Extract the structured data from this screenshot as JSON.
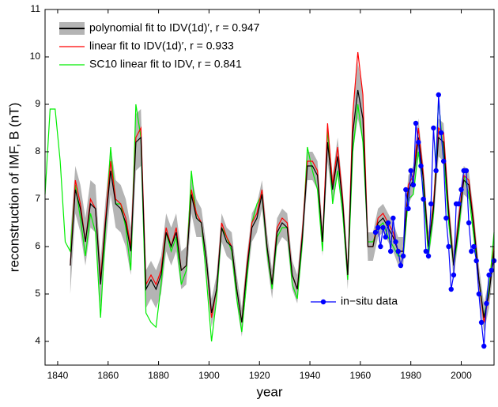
{
  "chart_data": {
    "type": "line",
    "xlabel": "year",
    "ylabel": "reconstruction of IMF, B  (nT)",
    "xlim": [
      1835,
      2013
    ],
    "ylim": [
      3.5,
      11
    ],
    "xticks": [
      1840,
      1860,
      1880,
      1900,
      1920,
      1940,
      1960,
      1980,
      2000
    ],
    "yticks": [
      4,
      5,
      6,
      7,
      8,
      9,
      10,
      11
    ],
    "band_color": "#b4b4b4",
    "series": [
      {
        "name": "polynomial fit to IDV(1d)′, r = 0.947",
        "color": "#000000",
        "x": [
          1845,
          1847,
          1849,
          1851,
          1853,
          1855,
          1857,
          1859,
          1861,
          1863,
          1865,
          1867,
          1869,
          1871,
          1873,
          1875,
          1877,
          1879,
          1881,
          1883,
          1885,
          1887,
          1889,
          1891,
          1893,
          1895,
          1897,
          1899,
          1901,
          1903,
          1905,
          1907,
          1909,
          1911,
          1913,
          1915,
          1917,
          1919,
          1921,
          1923,
          1925,
          1927,
          1929,
          1931,
          1933,
          1935,
          1937,
          1939,
          1941,
          1943,
          1945,
          1947,
          1949,
          1951,
          1953,
          1955,
          1957,
          1959,
          1961,
          1963,
          1965,
          1967,
          1969,
          1971,
          1973,
          1975,
          1977,
          1979,
          1981,
          1983,
          1985,
          1987,
          1989,
          1991,
          1993,
          1995,
          1997,
          1999,
          2001,
          2003,
          2005,
          2007,
          2009,
          2011,
          2013
        ],
        "values": [
          5.6,
          7.2,
          6.8,
          6.1,
          6.9,
          6.8,
          5.2,
          6.5,
          7.6,
          6.9,
          6.8,
          6.5,
          5.9,
          8.2,
          8.3,
          5.1,
          5.3,
          5.1,
          5.4,
          6.3,
          6.0,
          6.3,
          5.5,
          5.6,
          7.1,
          6.6,
          6.5,
          5.7,
          4.6,
          5.1,
          6.4,
          6.1,
          6.0,
          5.1,
          4.4,
          5.5,
          6.4,
          6.6,
          7.1,
          6.0,
          5.2,
          6.3,
          6.5,
          6.4,
          5.4,
          5.1,
          6.2,
          7.7,
          7.7,
          7.5,
          6.1,
          8.2,
          7.2,
          7.9,
          6.9,
          5.4,
          8.4,
          9.3,
          8.7,
          6.0,
          6.0,
          6.5,
          6.6,
          6.4,
          6.2,
          5.9,
          5.9,
          7.2,
          7.4,
          8.3,
          7.4,
          6.0,
          6.8,
          8.3,
          8.2,
          6.7,
          5.6,
          6.5,
          7.4,
          7.3,
          6.4,
          5.3,
          4.5,
          5.0,
          5.9
        ],
        "band": [
          0.6,
          0.5,
          0.5,
          0.5,
          0.5,
          0.5,
          0.5,
          0.5,
          0.5,
          0.5,
          0.5,
          0.5,
          0.5,
          0.6,
          0.6,
          0.4,
          0.4,
          0.4,
          0.4,
          0.4,
          0.4,
          0.4,
          0.4,
          0.4,
          0.4,
          0.4,
          0.3,
          0.3,
          0.3,
          0.3,
          0.3,
          0.3,
          0.3,
          0.3,
          0.3,
          0.3,
          0.3,
          0.3,
          0.3,
          0.3,
          0.3,
          0.3,
          0.3,
          0.3,
          0.3,
          0.3,
          0.3,
          0.3,
          0.3,
          0.3,
          0.3,
          0.4,
          0.3,
          0.4,
          0.3,
          0.3,
          0.4,
          0.6,
          0.5,
          0.3,
          0.3,
          0.3,
          0.3,
          0.3,
          0.3,
          0.3,
          0.3,
          0.3,
          0.3,
          0.4,
          0.3,
          0.3,
          0.3,
          0.4,
          0.4,
          0.3,
          0.3,
          0.3,
          0.3,
          0.3,
          0.3,
          0.3,
          0.3,
          0.3,
          0.3
        ]
      },
      {
        "name": "linear fit to IDV(1d)′, r = 0.933",
        "color": "#ff0000",
        "x": [
          1845,
          1847,
          1849,
          1851,
          1853,
          1855,
          1857,
          1859,
          1861,
          1863,
          1865,
          1867,
          1869,
          1871,
          1873,
          1875,
          1877,
          1879,
          1881,
          1883,
          1885,
          1887,
          1889,
          1891,
          1893,
          1895,
          1897,
          1899,
          1901,
          1903,
          1905,
          1907,
          1909,
          1911,
          1913,
          1915,
          1917,
          1919,
          1921,
          1923,
          1925,
          1927,
          1929,
          1931,
          1933,
          1935,
          1937,
          1939,
          1941,
          1943,
          1945,
          1947,
          1949,
          1951,
          1953,
          1955,
          1957,
          1959,
          1961,
          1963,
          1965,
          1967,
          1969,
          1971,
          1973,
          1975,
          1977,
          1979,
          1981,
          1983,
          1985,
          1987,
          1989,
          1991,
          1993,
          1995,
          1997,
          1999,
          2001,
          2003,
          2005,
          2007,
          2009,
          2011,
          2013
        ],
        "values": [
          5.6,
          7.4,
          6.9,
          6.1,
          7.0,
          6.8,
          5.3,
          6.6,
          7.8,
          7.0,
          6.9,
          6.6,
          6.0,
          8.3,
          8.5,
          5.2,
          5.4,
          5.2,
          5.5,
          6.4,
          6.0,
          6.4,
          5.5,
          5.6,
          7.2,
          6.7,
          6.5,
          5.7,
          4.5,
          5.1,
          6.5,
          6.2,
          6.0,
          5.1,
          4.4,
          5.6,
          6.5,
          6.7,
          7.2,
          6.0,
          5.2,
          6.4,
          6.6,
          6.5,
          5.4,
          5.1,
          6.3,
          7.8,
          7.8,
          7.6,
          6.1,
          8.6,
          7.3,
          8.1,
          7.0,
          5.4,
          8.8,
          10.1,
          9.2,
          6.0,
          6.0,
          6.6,
          6.7,
          6.5,
          6.3,
          5.9,
          5.9,
          7.3,
          7.5,
          8.5,
          7.5,
          6.0,
          6.9,
          8.5,
          8.4,
          6.8,
          5.6,
          6.6,
          7.5,
          7.4,
          6.5,
          5.3,
          4.4,
          5.0,
          6.0
        ]
      },
      {
        "name": "SC10 linear fit to IDV, r = 0.841",
        "color": "#00ee00",
        "x": [
          1835,
          1837,
          1839,
          1841,
          1843,
          1845,
          1847,
          1849,
          1851,
          1853,
          1855,
          1857,
          1859,
          1861,
          1863,
          1865,
          1867,
          1869,
          1871,
          1873,
          1875,
          1877,
          1879,
          1881,
          1883,
          1885,
          1887,
          1889,
          1891,
          1893,
          1895,
          1897,
          1899,
          1901,
          1903,
          1905,
          1907,
          1909,
          1911,
          1913,
          1915,
          1917,
          1919,
          1921,
          1923,
          1925,
          1927,
          1929,
          1931,
          1933,
          1935,
          1937,
          1939,
          1941,
          1943,
          1945,
          1947,
          1949,
          1951,
          1953,
          1955,
          1957,
          1959,
          1961,
          1963,
          1965,
          1967,
          1969,
          1971,
          1973,
          1975,
          1977,
          1979,
          1981,
          1983,
          1985,
          1987,
          1989,
          1991,
          1993,
          1995,
          1997,
          1999,
          2001,
          2003,
          2005,
          2007,
          2009,
          2011,
          2013
        ],
        "values": [
          7.1,
          8.9,
          8.9,
          7.8,
          6.1,
          5.9,
          7.3,
          6.6,
          5.8,
          6.7,
          6.3,
          4.5,
          6.4,
          8.1,
          6.9,
          6.9,
          6.4,
          5.5,
          9.0,
          8.3,
          4.6,
          4.4,
          4.3,
          5.2,
          6.3,
          5.9,
          6.2,
          5.2,
          5.5,
          7.6,
          6.6,
          6.5,
          5.3,
          4.0,
          4.9,
          6.4,
          6.2,
          5.9,
          4.9,
          4.2,
          5.3,
          6.5,
          6.9,
          7.1,
          5.9,
          5.1,
          6.2,
          6.4,
          6.4,
          5.2,
          4.9,
          6.1,
          8.1,
          7.6,
          7.2,
          5.9,
          8.5,
          6.9,
          7.6,
          6.7,
          5.3,
          8.0,
          9.0,
          8.2,
          6.1,
          6.1,
          6.4,
          6.5,
          6.2,
          6.0,
          5.8,
          5.8,
          7.0,
          7.1,
          8.0,
          7.2,
          5.8,
          6.7,
          9.1,
          7.9,
          6.5,
          5.6,
          6.3,
          7.5,
          7.1,
          6.2,
          5.3,
          4.5,
          5.1,
          6.3
        ]
      },
      {
        "name": "in−situ data",
        "color": "#0000ff",
        "marker": "circle",
        "x": [
          1966,
          1967,
          1968,
          1969,
          1970,
          1971,
          1972,
          1973,
          1974,
          1975,
          1976,
          1977,
          1978,
          1979,
          1980,
          1981,
          1982,
          1983,
          1984,
          1985,
          1986,
          1987,
          1988,
          1989,
          1990,
          1991,
          1992,
          1993,
          1994,
          1995,
          1996,
          1997,
          1998,
          1999,
          2000,
          2001,
          2002,
          2003,
          2004,
          2005,
          2006,
          2007,
          2008,
          2009,
          2010,
          2011,
          2012,
          2013
        ],
        "values": [
          6.3,
          6.4,
          6.0,
          6.4,
          6.2,
          6.5,
          5.9,
          6.6,
          6.1,
          5.9,
          5.6,
          5.8,
          7.2,
          6.8,
          7.6,
          7.3,
          8.6,
          8.2,
          7.7,
          7.0,
          5.9,
          5.8,
          6.9,
          8.5,
          7.6,
          9.2,
          8.4,
          7.8,
          6.6,
          6.0,
          5.1,
          5.4,
          6.9,
          6.9,
          7.2,
          7.6,
          7.6,
          6.5,
          5.9,
          6.0,
          5.7,
          5.0,
          4.4,
          3.9,
          4.8,
          5.4,
          5.5,
          5.7
        ]
      }
    ]
  }
}
